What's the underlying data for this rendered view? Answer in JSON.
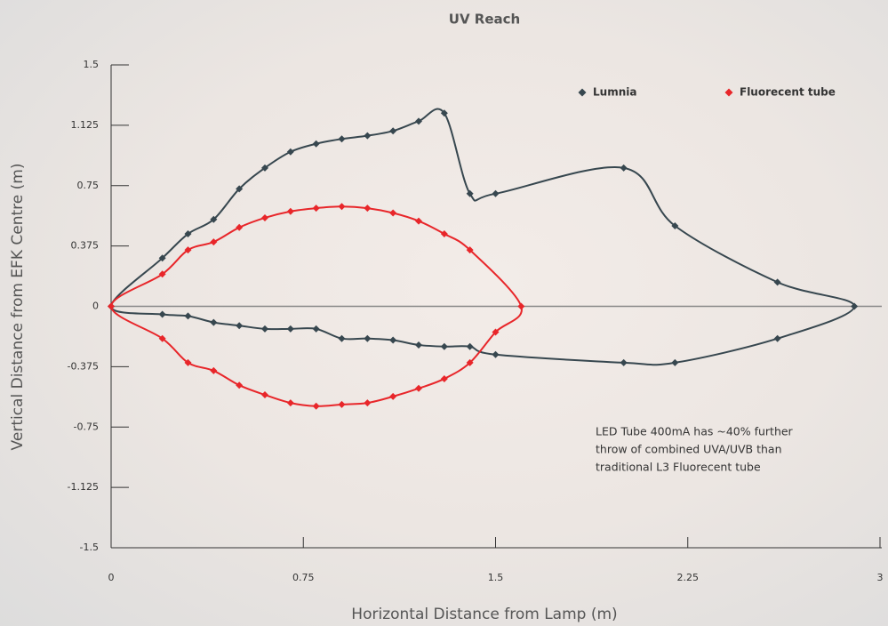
{
  "chart_data": {
    "type": "scatter",
    "title": "UV Reach",
    "x_label": "Horizontal Distance from Lamp (m)",
    "y_label": "Vertical Distance from EFK Centre (m)",
    "xlim": [
      0,
      3
    ],
    "ylim": [
      -1.5,
      1.5
    ],
    "xticks": [
      0,
      0.75,
      1.5,
      2.25,
      3
    ],
    "yticks": [
      1.5,
      1.125,
      0.75,
      0.375,
      0,
      -0.375,
      -0.75,
      -1.125,
      -1.5
    ],
    "legend": "top-right",
    "series": [
      {
        "name": "Lumnia",
        "color": "#37474f",
        "x": [
          0,
          0.2,
          0.3,
          0.4,
          0.5,
          0.6,
          0.7,
          0.8,
          0.9,
          1.0,
          1.1,
          1.2,
          1.3,
          1.4,
          1.5,
          2.0,
          2.2,
          2.6,
          2.9,
          2.6,
          2.2,
          2.0,
          1.5,
          1.4,
          1.3,
          1.2,
          1.1,
          1.0,
          0.9,
          0.8,
          0.7,
          0.6,
          0.5,
          0.4,
          0.3,
          0.2
        ],
        "y": [
          0,
          0.3,
          0.45,
          0.54,
          0.73,
          0.86,
          0.96,
          1.01,
          1.04,
          1.06,
          1.09,
          1.15,
          1.2,
          0.7,
          0.7,
          0.86,
          0.5,
          0.15,
          0,
          -0.2,
          -0.35,
          -0.35,
          -0.3,
          -0.25,
          -0.25,
          -0.24,
          -0.21,
          -0.2,
          -0.2,
          -0.14,
          -0.14,
          -0.14,
          -0.12,
          -0.1,
          -0.06,
          -0.05
        ]
      },
      {
        "name": "Fluorecent tube",
        "color": "#e8262a",
        "x": [
          0,
          0.2,
          0.3,
          0.4,
          0.5,
          0.6,
          0.7,
          0.8,
          0.9,
          1.0,
          1.1,
          1.2,
          1.3,
          1.4,
          1.6,
          1.5,
          1.4,
          1.3,
          1.2,
          1.1,
          1.0,
          0.9,
          0.8,
          0.7,
          0.6,
          0.5,
          0.4,
          0.3,
          0.2
        ],
        "y": [
          0,
          0.2,
          0.35,
          0.4,
          0.49,
          0.55,
          0.59,
          0.61,
          0.62,
          0.61,
          0.58,
          0.53,
          0.45,
          0.35,
          0,
          -0.16,
          -0.35,
          -0.45,
          -0.51,
          -0.56,
          -0.6,
          -0.61,
          -0.62,
          -0.6,
          -0.55,
          -0.49,
          -0.4,
          -0.35,
          -0.2
        ]
      }
    ],
    "annotation": [
      "LED Tube 400mA has ~40% further",
      "throw of combined UVA/UVB than",
      "traditional L3 Fluorecent tube"
    ]
  }
}
